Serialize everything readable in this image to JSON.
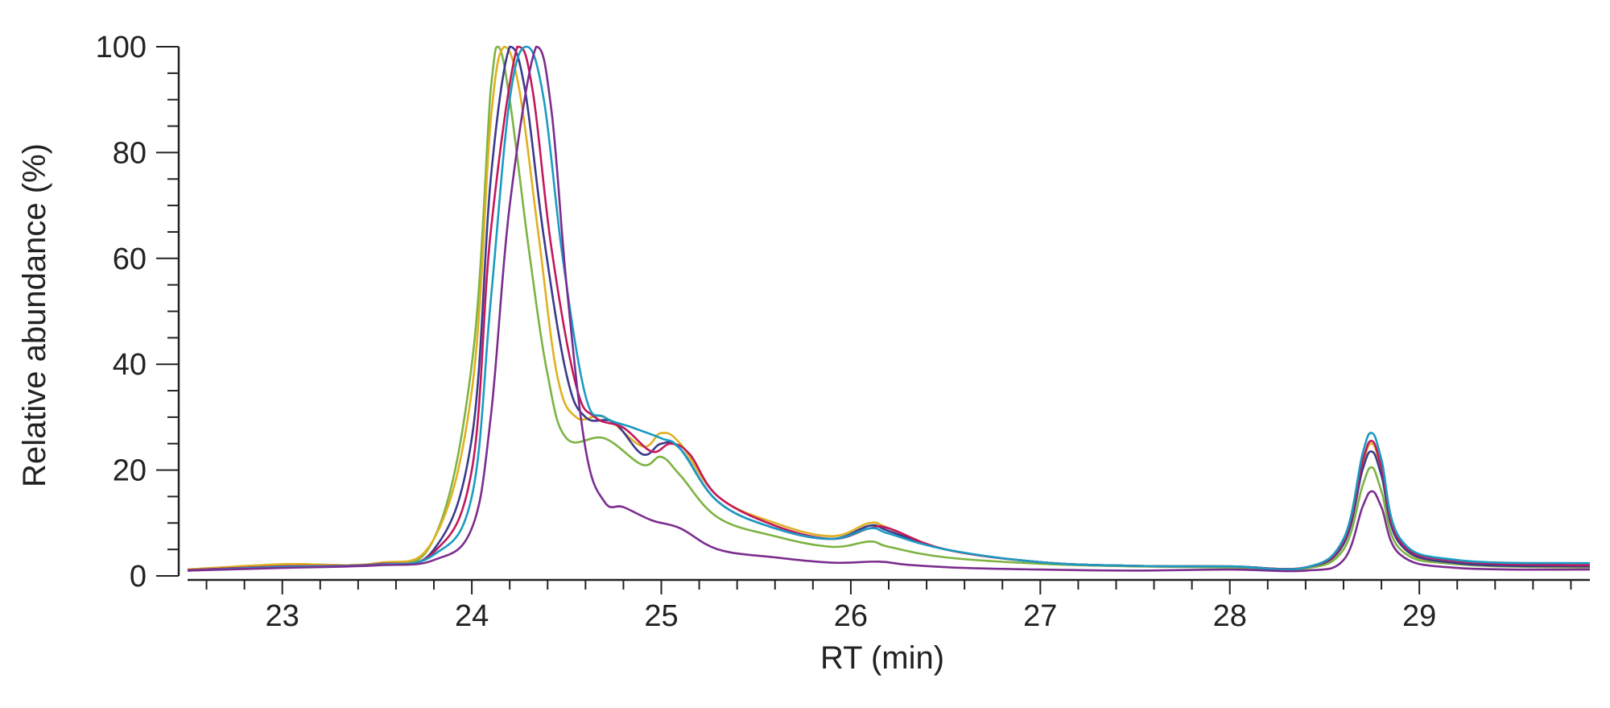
{
  "chart_data": {
    "type": "line",
    "title": "",
    "xlabel": "RT (min)",
    "ylabel": "Relative abundance (%)",
    "xlim": [
      22.5,
      29.9
    ],
    "ylim": [
      0,
      100
    ],
    "x_ticks": [
      23,
      24,
      25,
      26,
      27,
      28,
      29
    ],
    "y_ticks": [
      0,
      20,
      40,
      60,
      80,
      100
    ],
    "x_minor_step": 0.2,
    "y_minor_step": 5,
    "grid": false,
    "legend": "none",
    "series": [
      {
        "color": "#7cb342",
        "main_peak_rt": 24.14,
        "values": [
          [
            22.5,
            1.2
          ],
          [
            23.0,
            2.2
          ],
          [
            23.5,
            2.4
          ],
          [
            23.8,
            7
          ],
          [
            24.0,
            40
          ],
          [
            24.1,
            92
          ],
          [
            24.14,
            100
          ],
          [
            24.2,
            90
          ],
          [
            24.3,
            62
          ],
          [
            24.4,
            38
          ],
          [
            24.5,
            26
          ],
          [
            24.7,
            26
          ],
          [
            24.9,
            21
          ],
          [
            25.0,
            22.5
          ],
          [
            25.1,
            19
          ],
          [
            25.3,
            11
          ],
          [
            25.6,
            7.5
          ],
          [
            25.9,
            5.5
          ],
          [
            26.1,
            6.5
          ],
          [
            26.2,
            5.5
          ],
          [
            26.5,
            3.5
          ],
          [
            27.0,
            2.3
          ],
          [
            27.5,
            1.8
          ],
          [
            28.0,
            1.6
          ],
          [
            28.4,
            1.4
          ],
          [
            28.6,
            5
          ],
          [
            28.7,
            17
          ],
          [
            28.75,
            20.5
          ],
          [
            28.8,
            16
          ],
          [
            28.9,
            5
          ],
          [
            29.2,
            2.2
          ],
          [
            29.9,
            1.6
          ]
        ]
      },
      {
        "color": "#e0b020",
        "main_peak_rt": 24.17,
        "values": [
          [
            22.5,
            1.2
          ],
          [
            23.0,
            2.2
          ],
          [
            23.5,
            2.4
          ],
          [
            23.8,
            7
          ],
          [
            24.0,
            35
          ],
          [
            24.1,
            86
          ],
          [
            24.17,
            100
          ],
          [
            24.25,
            92
          ],
          [
            24.35,
            65
          ],
          [
            24.45,
            38
          ],
          [
            24.55,
            30
          ],
          [
            24.7,
            30
          ],
          [
            24.9,
            24.5
          ],
          [
            25.0,
            27
          ],
          [
            25.1,
            25
          ],
          [
            25.3,
            15
          ],
          [
            25.6,
            10
          ],
          [
            25.9,
            7.5
          ],
          [
            26.1,
            10
          ],
          [
            26.2,
            9
          ],
          [
            26.5,
            5
          ],
          [
            27.0,
            2.6
          ],
          [
            27.5,
            1.9
          ],
          [
            28.0,
            1.8
          ],
          [
            28.4,
            1.6
          ],
          [
            28.6,
            6
          ],
          [
            28.7,
            21
          ],
          [
            28.75,
            25
          ],
          [
            28.8,
            20
          ],
          [
            28.9,
            6
          ],
          [
            29.2,
            2.4
          ],
          [
            29.9,
            1.8
          ]
        ]
      },
      {
        "color": "#3a3a8c",
        "main_peak_rt": 24.2,
        "values": [
          [
            22.5,
            1.1
          ],
          [
            23.0,
            1.8
          ],
          [
            23.5,
            2.2
          ],
          [
            23.8,
            5
          ],
          [
            24.0,
            26
          ],
          [
            24.1,
            75
          ],
          [
            24.2,
            100
          ],
          [
            24.28,
            92
          ],
          [
            24.38,
            64
          ],
          [
            24.5,
            38
          ],
          [
            24.6,
            30
          ],
          [
            24.75,
            29
          ],
          [
            24.9,
            23
          ],
          [
            25.0,
            25
          ],
          [
            25.1,
            24
          ],
          [
            25.3,
            14
          ],
          [
            25.6,
            9
          ],
          [
            25.9,
            7
          ],
          [
            26.1,
            9.5
          ],
          [
            26.2,
            8.5
          ],
          [
            26.5,
            5
          ],
          [
            27.0,
            2.6
          ],
          [
            27.5,
            1.9
          ],
          [
            28.0,
            1.8
          ],
          [
            28.4,
            1.6
          ],
          [
            28.6,
            6
          ],
          [
            28.7,
            20
          ],
          [
            28.75,
            23.5
          ],
          [
            28.8,
            19
          ],
          [
            28.9,
            6
          ],
          [
            29.2,
            2.4
          ],
          [
            29.9,
            1.8
          ]
        ]
      },
      {
        "color": "#c2185b",
        "main_peak_rt": 24.24,
        "values": [
          [
            22.5,
            1.1
          ],
          [
            23.0,
            1.8
          ],
          [
            23.5,
            2.2
          ],
          [
            23.8,
            4.5
          ],
          [
            24.0,
            20
          ],
          [
            24.1,
            65
          ],
          [
            24.24,
            100
          ],
          [
            24.32,
            92
          ],
          [
            24.42,
            62
          ],
          [
            24.55,
            36
          ],
          [
            24.65,
            30
          ],
          [
            24.8,
            28
          ],
          [
            24.95,
            23.5
          ],
          [
            25.05,
            25
          ],
          [
            25.15,
            23
          ],
          [
            25.3,
            15
          ],
          [
            25.6,
            9.5
          ],
          [
            25.9,
            7
          ],
          [
            26.1,
            9
          ],
          [
            26.2,
            9
          ],
          [
            26.5,
            5
          ],
          [
            27.0,
            2.6
          ],
          [
            27.5,
            1.9
          ],
          [
            28.0,
            1.8
          ],
          [
            28.4,
            1.6
          ],
          [
            28.6,
            6.5
          ],
          [
            28.7,
            21.5
          ],
          [
            28.75,
            25.5
          ],
          [
            28.8,
            20.5
          ],
          [
            28.9,
            6.5
          ],
          [
            29.2,
            2.8
          ],
          [
            29.9,
            2
          ]
        ]
      },
      {
        "color": "#1a9bc2",
        "main_peak_rt": 24.29,
        "values": [
          [
            22.5,
            1
          ],
          [
            23.0,
            1.7
          ],
          [
            23.5,
            2.1
          ],
          [
            23.8,
            4
          ],
          [
            24.0,
            15
          ],
          [
            24.1,
            52
          ],
          [
            24.2,
            90
          ],
          [
            24.29,
            100
          ],
          [
            24.38,
            90
          ],
          [
            24.48,
            60
          ],
          [
            24.6,
            34
          ],
          [
            24.7,
            30
          ],
          [
            24.85,
            28
          ],
          [
            25.0,
            26
          ],
          [
            25.1,
            24
          ],
          [
            25.3,
            14
          ],
          [
            25.6,
            9
          ],
          [
            25.9,
            7
          ],
          [
            26.1,
            9
          ],
          [
            26.2,
            8
          ],
          [
            26.5,
            5
          ],
          [
            27.0,
            2.6
          ],
          [
            27.5,
            1.9
          ],
          [
            28.0,
            1.8
          ],
          [
            28.4,
            1.6
          ],
          [
            28.6,
            7
          ],
          [
            28.7,
            23
          ],
          [
            28.75,
            27
          ],
          [
            28.8,
            22
          ],
          [
            28.9,
            7
          ],
          [
            29.2,
            3
          ],
          [
            29.9,
            2.4
          ]
        ]
      },
      {
        "color": "#7b2d8e",
        "main_peak_rt": 24.34,
        "values": [
          [
            22.5,
            1
          ],
          [
            23.0,
            1.5
          ],
          [
            23.5,
            2
          ],
          [
            23.8,
            3
          ],
          [
            24.0,
            9
          ],
          [
            24.1,
            30
          ],
          [
            24.2,
            70
          ],
          [
            24.34,
            100
          ],
          [
            24.42,
            88
          ],
          [
            24.5,
            55
          ],
          [
            24.6,
            24
          ],
          [
            24.7,
            14
          ],
          [
            24.8,
            13
          ],
          [
            24.95,
            10.5
          ],
          [
            25.1,
            9
          ],
          [
            25.3,
            5
          ],
          [
            25.6,
            3.5
          ],
          [
            25.9,
            2.5
          ],
          [
            26.15,
            2.7
          ],
          [
            26.3,
            2.1
          ],
          [
            26.6,
            1.5
          ],
          [
            27.0,
            1.2
          ],
          [
            27.5,
            1
          ],
          [
            28.0,
            1.2
          ],
          [
            28.4,
            1
          ],
          [
            28.6,
            3
          ],
          [
            28.7,
            13
          ],
          [
            28.75,
            16
          ],
          [
            28.8,
            13
          ],
          [
            28.9,
            4
          ],
          [
            29.2,
            1.5
          ],
          [
            29.9,
            1.2
          ]
        ]
      }
    ]
  }
}
